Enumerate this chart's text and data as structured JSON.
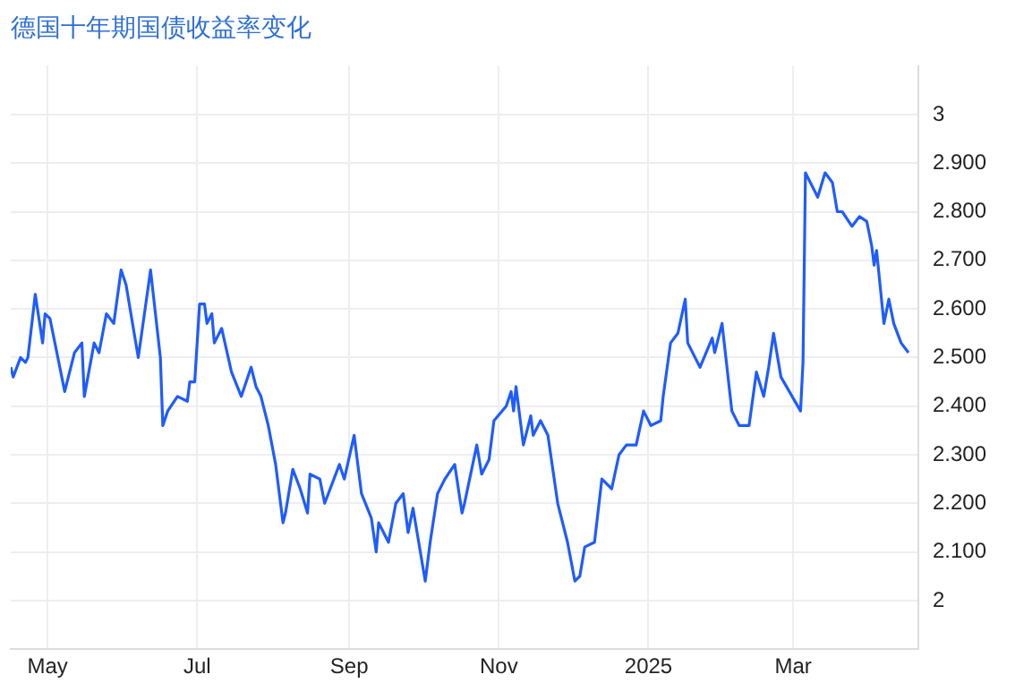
{
  "chart_data": {
    "type": "line",
    "title": "德国十年期国债收益率变化",
    "x": [
      "2024-04-16",
      "2024-04-17",
      "2024-04-20",
      "2024-04-22",
      "2024-04-23",
      "2024-04-26",
      "2024-04-29",
      "2024-04-30",
      "2024-05-02",
      "2024-05-08",
      "2024-05-12",
      "2024-05-15",
      "2024-05-16",
      "2024-05-20",
      "2024-05-22",
      "2024-05-25",
      "2024-05-28",
      "2024-05-31",
      "2024-06-02",
      "2024-06-07",
      "2024-06-12",
      "2024-06-16",
      "2024-06-17",
      "2024-06-19",
      "2024-06-23",
      "2024-06-27",
      "2024-06-28",
      "2024-06-30",
      "2024-07-02",
      "2024-07-04",
      "2024-07-05",
      "2024-07-07",
      "2024-07-08",
      "2024-07-11",
      "2024-07-15",
      "2024-07-19",
      "2024-07-23",
      "2024-07-25",
      "2024-07-27",
      "2024-07-30",
      "2024-08-02",
      "2024-08-05",
      "2024-08-06",
      "2024-08-09",
      "2024-08-12",
      "2024-08-15",
      "2024-08-16",
      "2024-08-20",
      "2024-08-22",
      "2024-08-28",
      "2024-08-30",
      "2024-09-03",
      "2024-09-06",
      "2024-09-10",
      "2024-09-12",
      "2024-09-13",
      "2024-09-17",
      "2024-09-20",
      "2024-09-23",
      "2024-09-25",
      "2024-09-27",
      "2024-10-02",
      "2024-10-04",
      "2024-10-07",
      "2024-10-10",
      "2024-10-14",
      "2024-10-17",
      "2024-10-18",
      "2024-10-23",
      "2024-10-25",
      "2024-10-28",
      "2024-10-30",
      "2024-11-04",
      "2024-11-06",
      "2024-11-07",
      "2024-11-08",
      "2024-11-11",
      "2024-11-14",
      "2024-11-15",
      "2024-11-18",
      "2024-11-21",
      "2024-11-25",
      "2024-11-29",
      "2024-12-02",
      "2024-12-04",
      "2024-12-06",
      "2024-12-10",
      "2024-12-13",
      "2024-12-17",
      "2024-12-20",
      "2024-12-23",
      "2024-12-27",
      "2024-12-30",
      "2025-01-02",
      "2025-01-06",
      "2025-01-07",
      "2025-01-10",
      "2025-01-13",
      "2025-01-16",
      "2025-01-17",
      "2025-01-22",
      "2025-01-27",
      "2025-01-28",
      "2025-01-31",
      "2025-02-04",
      "2025-02-07",
      "2025-02-11",
      "2025-02-14",
      "2025-02-17",
      "2025-02-19",
      "2025-02-21",
      "2025-02-24",
      "2025-03-04",
      "2025-03-05",
      "2025-03-06",
      "2025-03-11",
      "2025-03-14",
      "2025-03-17",
      "2025-03-19",
      "2025-03-21",
      "2025-03-25",
      "2025-03-28",
      "2025-03-31",
      "2025-04-02",
      "2025-04-03",
      "2025-04-04",
      "2025-04-07",
      "2025-04-09",
      "2025-04-11",
      "2025-04-14",
      "2025-04-17"
    ],
    "series": [
      {
        "color": "#1f5cff",
        "values": [
          2.48,
          2.46,
          2.5,
          2.49,
          2.5,
          2.63,
          2.53,
          2.59,
          2.58,
          2.43,
          2.51,
          2.53,
          2.42,
          2.53,
          2.51,
          2.59,
          2.57,
          2.68,
          2.65,
          2.5,
          2.68,
          2.5,
          2.36,
          2.39,
          2.42,
          2.41,
          2.45,
          2.45,
          2.61,
          2.61,
          2.57,
          2.59,
          2.53,
          2.56,
          2.47,
          2.42,
          2.48,
          2.44,
          2.42,
          2.36,
          2.28,
          2.16,
          2.18,
          2.27,
          2.23,
          2.18,
          2.26,
          2.25,
          2.2,
          2.28,
          2.25,
          2.34,
          2.22,
          2.17,
          2.1,
          2.16,
          2.12,
          2.2,
          2.22,
          2.14,
          2.19,
          2.04,
          2.12,
          2.22,
          2.25,
          2.28,
          2.18,
          2.2,
          2.32,
          2.26,
          2.29,
          2.37,
          2.4,
          2.43,
          2.39,
          2.44,
          2.32,
          2.38,
          2.34,
          2.37,
          2.34,
          2.2,
          2.12,
          2.04,
          2.05,
          2.11,
          2.12,
          2.25,
          2.23,
          2.3,
          2.32,
          2.32,
          2.39,
          2.36,
          2.37,
          2.42,
          2.53,
          2.55,
          2.62,
          2.53,
          2.48,
          2.54,
          2.51,
          2.57,
          2.39,
          2.36,
          2.36,
          2.47,
          2.42,
          2.48,
          2.55,
          2.46,
          2.39,
          2.49,
          2.88,
          2.83,
          2.88,
          2.86,
          2.8,
          2.8,
          2.77,
          2.79,
          2.78,
          2.73,
          2.69,
          2.72,
          2.57,
          2.62,
          2.57,
          2.53,
          2.51
        ]
      }
    ],
    "xlim": [
      "2024-04-16",
      "2025-04-21"
    ],
    "xticks": [
      {
        "value": "2024-05-01",
        "label": "May"
      },
      {
        "value": "2024-07-01",
        "label": "Jul"
      },
      {
        "value": "2024-09-01",
        "label": "Sep"
      },
      {
        "value": "2024-11-01",
        "label": "Nov"
      },
      {
        "value": "2025-01-01",
        "label": "2025"
      },
      {
        "value": "2025-03-01",
        "label": "Mar"
      }
    ],
    "ylim": [
      1.9,
      3.1
    ],
    "yticks": [
      2,
      {
        "value": 2.1,
        "label": "2.100"
      },
      {
        "value": 2.2,
        "label": "2.200"
      },
      {
        "value": 2.3,
        "label": "2.300"
      },
      {
        "value": 2.4,
        "label": "2.400"
      },
      {
        "value": 2.5,
        "label": "2.500"
      },
      {
        "value": 2.6,
        "label": "2.600"
      },
      {
        "value": 2.7,
        "label": "2.700"
      },
      {
        "value": 2.8,
        "label": "2.800"
      },
      {
        "value": 2.9,
        "label": "2.900"
      },
      3
    ],
    "grid": true,
    "legend": false
  }
}
